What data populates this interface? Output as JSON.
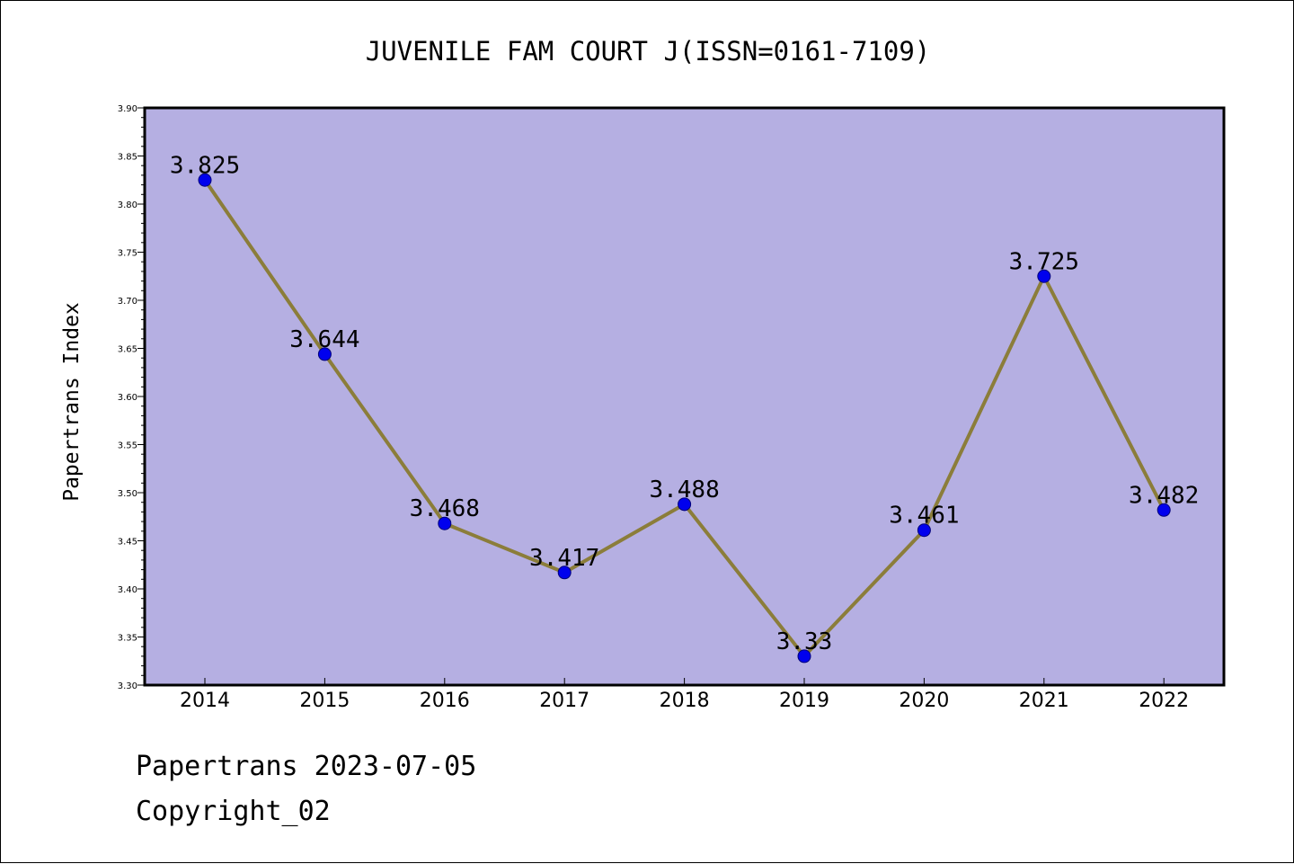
{
  "chart_data": {
    "type": "line",
    "title": "JUVENILE FAM COURT J(ISSN=0161-7109)",
    "xlabel": "",
    "ylabel": "Papertrans Index",
    "categories": [
      "2014",
      "2015",
      "2016",
      "2017",
      "2018",
      "2019",
      "2020",
      "2021",
      "2022"
    ],
    "series": [
      {
        "values": [
          3.825,
          3.644,
          3.468,
          3.417,
          3.488,
          3.33,
          3.461,
          3.725,
          3.482
        ]
      }
    ],
    "data_labels": [
      "3.825",
      "3.644",
      "3.468",
      "3.417",
      "3.488",
      "3.33",
      "3.461",
      "3.725",
      "3.482"
    ],
    "ylim": [
      3.3,
      3.9
    ],
    "y_ticks": [
      "3.30",
      "3.35",
      "3.40",
      "3.45",
      "3.50",
      "3.55",
      "3.60",
      "3.65",
      "3.70",
      "3.75",
      "3.80",
      "3.85",
      "3.90"
    ],
    "grid": false,
    "legend": "none",
    "colors": {
      "plot_background": "#b5afe2",
      "line": "#8b7d3a",
      "marker_fill": "#0000ee",
      "marker_stroke": "#00007a",
      "axis": "#000000"
    }
  },
  "footer": {
    "date_line": "Papertrans 2023-07-05",
    "copyright": "Copyright_02"
  }
}
